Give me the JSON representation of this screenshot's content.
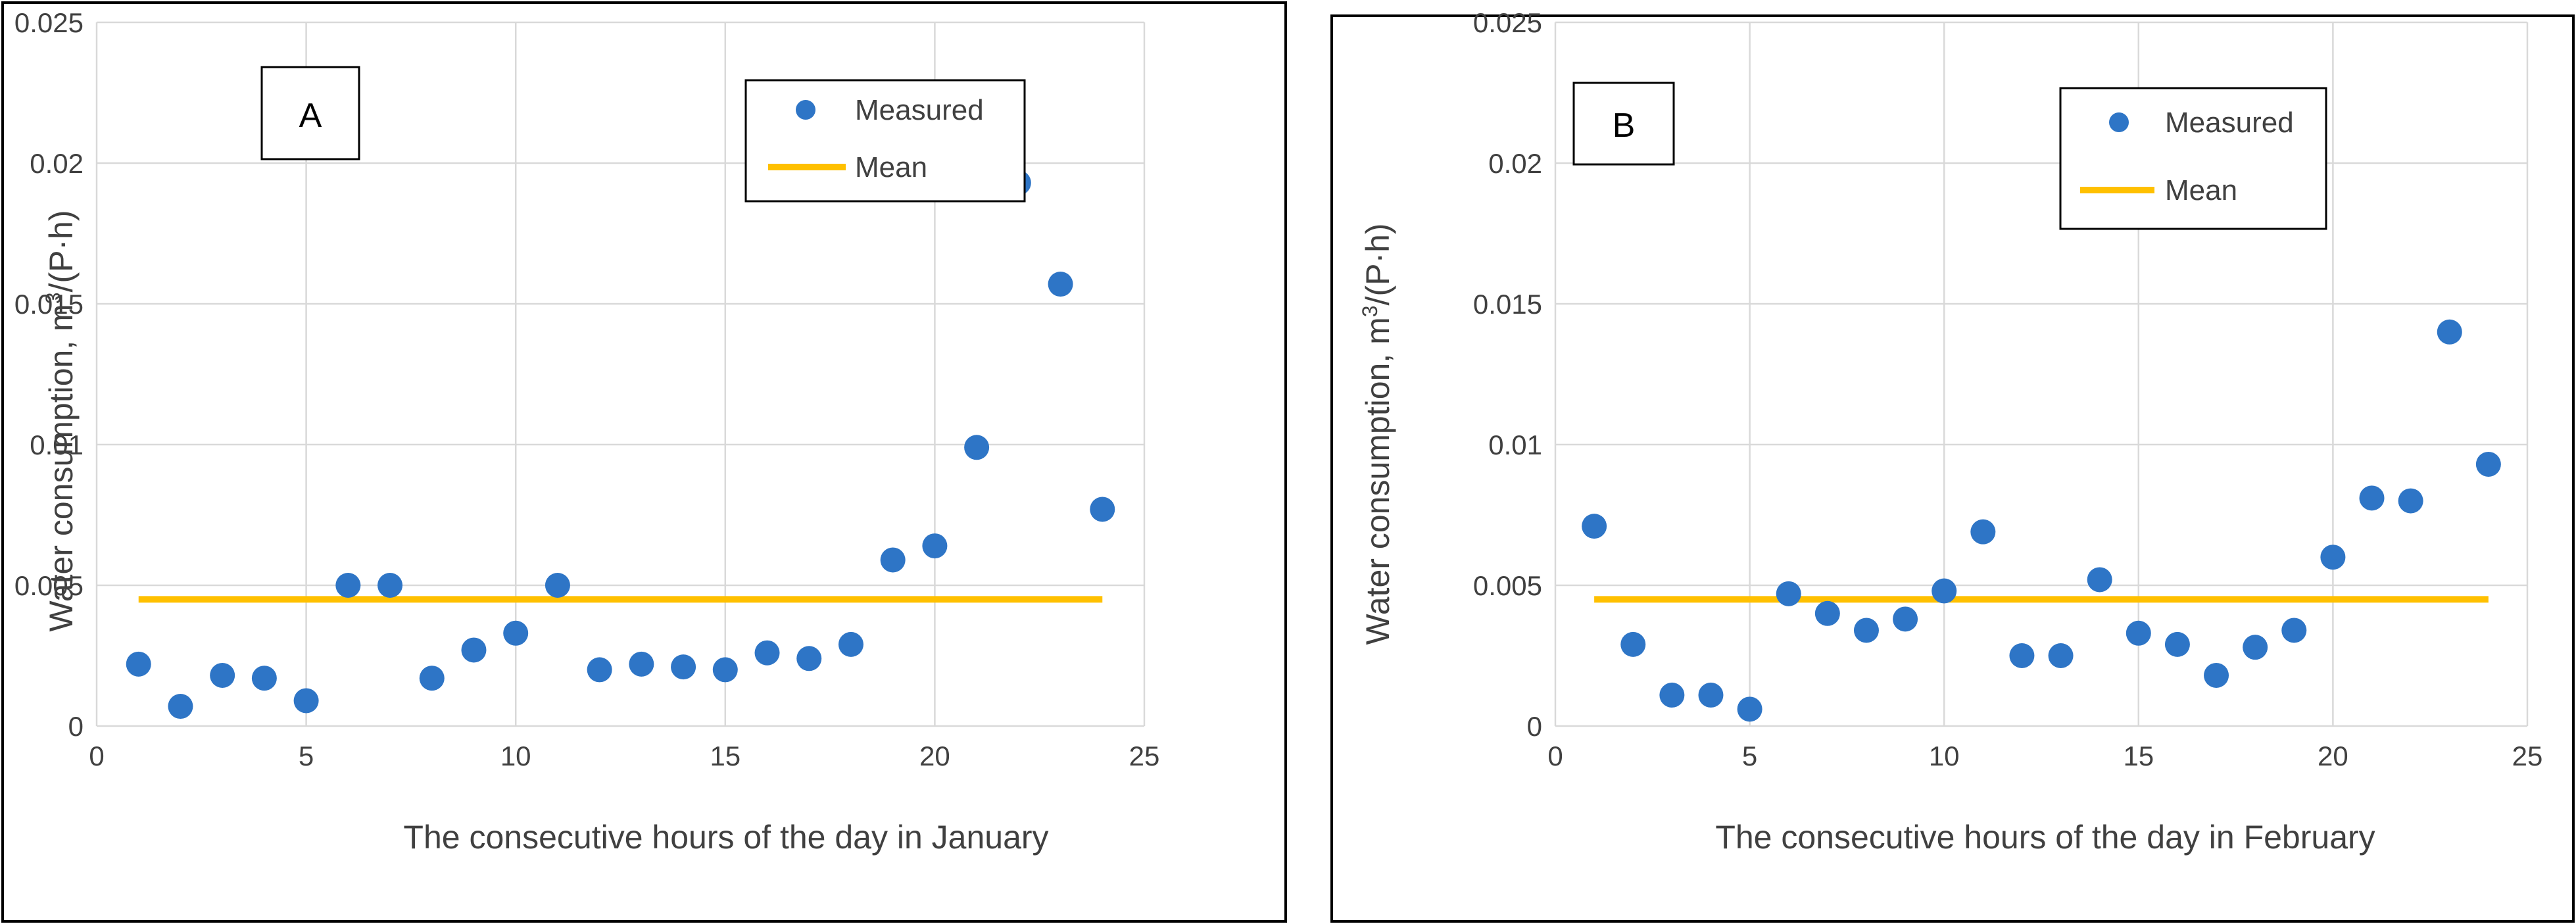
{
  "colors": {
    "measured": "#2E75C6",
    "mean": "#FFC000",
    "grid": "#D9D9D9"
  },
  "chart_data": [
    {
      "type": "scatter",
      "panel_label": "A",
      "xlabel": "The consecutive hours of the day in January",
      "ylabel_prefix": "Water consumption, m",
      "ylabel_sup": "3",
      "ylabel_suffix": "/(P·h)",
      "xlim": [
        0,
        25
      ],
      "ylim": [
        0,
        0.025
      ],
      "xticks": [
        0,
        5,
        10,
        15,
        20,
        25
      ],
      "xtick_labels": [
        "0",
        "5",
        "10",
        "15",
        "20",
        "25"
      ],
      "yticks": [
        0,
        0.005,
        0.01,
        0.015,
        0.02,
        0.025
      ],
      "ytick_labels": [
        "0",
        "0.005",
        "0.01",
        "0.015",
        "0.02",
        "0.025"
      ],
      "grid": true,
      "legend": {
        "position": "top-right",
        "entries": [
          "Measured",
          "Mean"
        ]
      },
      "series": [
        {
          "name": "Measured",
          "type": "scatter",
          "x": [
            1,
            2,
            3,
            4,
            5,
            6,
            7,
            8,
            9,
            10,
            11,
            12,
            13,
            14,
            15,
            16,
            17,
            18,
            19,
            20,
            21,
            22,
            23,
            24
          ],
          "y": [
            0.0022,
            0.0007,
            0.0018,
            0.0017,
            0.0009,
            0.005,
            0.005,
            0.0017,
            0.0027,
            0.0033,
            0.005,
            0.002,
            0.0022,
            0.0021,
            0.002,
            0.0026,
            0.0024,
            0.0029,
            0.0059,
            0.0064,
            0.0099,
            0.0193,
            0.0157,
            0.0077
          ]
        },
        {
          "name": "Mean",
          "type": "line",
          "x": [
            1,
            24
          ],
          "y": [
            0.0045,
            0.0045
          ]
        }
      ]
    },
    {
      "type": "scatter",
      "panel_label": "B",
      "xlabel": "The consecutive hours of the day in February",
      "ylabel_prefix": "Water consumption, m",
      "ylabel_sup": "3",
      "ylabel_suffix": "/(P·h)",
      "xlim": [
        0,
        25
      ],
      "ylim": [
        0,
        0.025
      ],
      "xticks": [
        0,
        5,
        10,
        15,
        20,
        25
      ],
      "xtick_labels": [
        "0",
        "5",
        "10",
        "15",
        "20",
        "25"
      ],
      "yticks": [
        0,
        0.005,
        0.01,
        0.015,
        0.02,
        0.025
      ],
      "ytick_labels": [
        "0",
        "0.005",
        "0.01",
        "0.015",
        "0.02",
        "0.025"
      ],
      "grid": true,
      "legend": {
        "position": "top-right",
        "entries": [
          "Measured",
          "Mean"
        ]
      },
      "series": [
        {
          "name": "Measured",
          "type": "scatter",
          "x": [
            1,
            2,
            3,
            4,
            5,
            6,
            7,
            8,
            9,
            10,
            11,
            12,
            13,
            14,
            15,
            16,
            17,
            18,
            19,
            20,
            21,
            22,
            23,
            24
          ],
          "y": [
            0.0071,
            0.0029,
            0.0011,
            0.0011,
            0.0006,
            0.0047,
            0.004,
            0.0034,
            0.0038,
            0.0048,
            0.0069,
            0.0025,
            0.0025,
            0.0052,
            0.0033,
            0.0029,
            0.0018,
            0.0028,
            0.0034,
            0.006,
            0.0081,
            0.008,
            0.014,
            0.0093
          ]
        },
        {
          "name": "Mean",
          "type": "line",
          "x": [
            1,
            24
          ],
          "y": [
            0.0045,
            0.0045
          ]
        }
      ]
    }
  ]
}
